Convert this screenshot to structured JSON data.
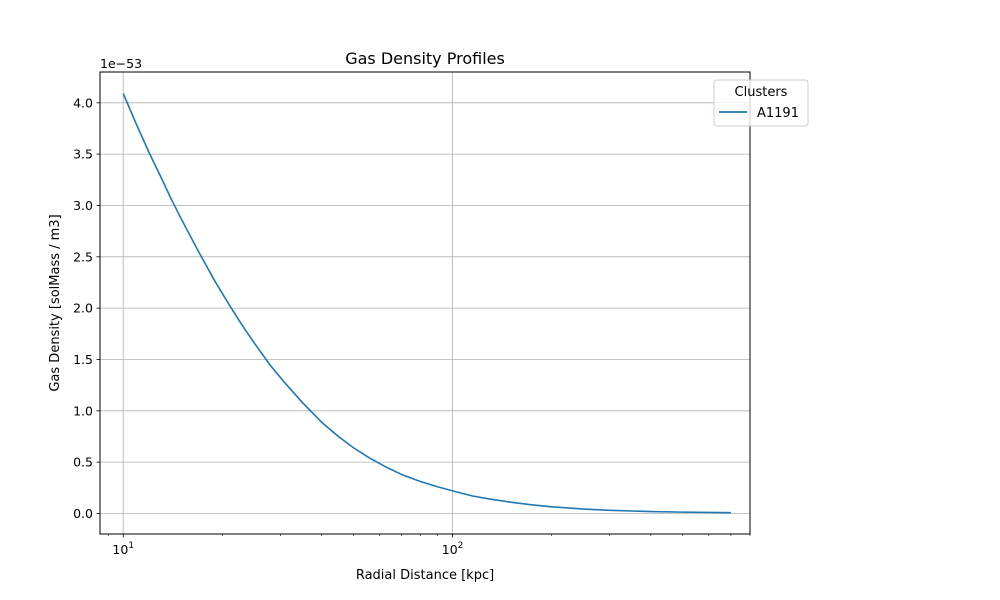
{
  "chart_data": {
    "type": "line",
    "title": "Gas Density Profiles",
    "xlabel": "Radial Distance [kpc]",
    "ylabel": "Gas Density [solMass / m3]",
    "x_scale": "log",
    "xlim": [
      8.5,
      800
    ],
    "ylim": [
      -0.2,
      4.3
    ],
    "y_offset_label": "1e−53",
    "grid": true,
    "x_ticks": [
      {
        "value": 10,
        "base": "10",
        "exp": "1"
      },
      {
        "value": 100,
        "base": "10",
        "exp": "2"
      }
    ],
    "y_ticks": [
      {
        "value": 0.0,
        "label": "0.0"
      },
      {
        "value": 0.5,
        "label": "0.5"
      },
      {
        "value": 1.0,
        "label": "1.0"
      },
      {
        "value": 1.5,
        "label": "1.5"
      },
      {
        "value": 2.0,
        "label": "2.0"
      },
      {
        "value": 2.5,
        "label": "2.5"
      },
      {
        "value": 3.0,
        "label": "3.0"
      },
      {
        "value": 3.5,
        "label": "3.5"
      },
      {
        "value": 4.0,
        "label": "4.0"
      }
    ],
    "legend": {
      "title": "Clusters",
      "placement": "top-right, outside axes"
    },
    "series": [
      {
        "name": "A1191",
        "color": "#1f77b4",
        "x": [
          10,
          11,
          12,
          13,
          14,
          15,
          17,
          19,
          21,
          23,
          25,
          28,
          31,
          35,
          40,
          45,
          50,
          56,
          63,
          70,
          80,
          90,
          100,
          115,
          130,
          150,
          175,
          200,
          250,
          300,
          350,
          400,
          500,
          600,
          700
        ],
        "y": [
          4.09,
          3.78,
          3.51,
          3.28,
          3.06,
          2.87,
          2.54,
          2.26,
          2.03,
          1.83,
          1.66,
          1.44,
          1.27,
          1.08,
          0.89,
          0.75,
          0.64,
          0.54,
          0.45,
          0.38,
          0.31,
          0.26,
          0.22,
          0.17,
          0.14,
          0.11,
          0.083,
          0.065,
          0.043,
          0.031,
          0.024,
          0.019,
          0.013,
          0.01,
          0.008
        ]
      }
    ]
  }
}
